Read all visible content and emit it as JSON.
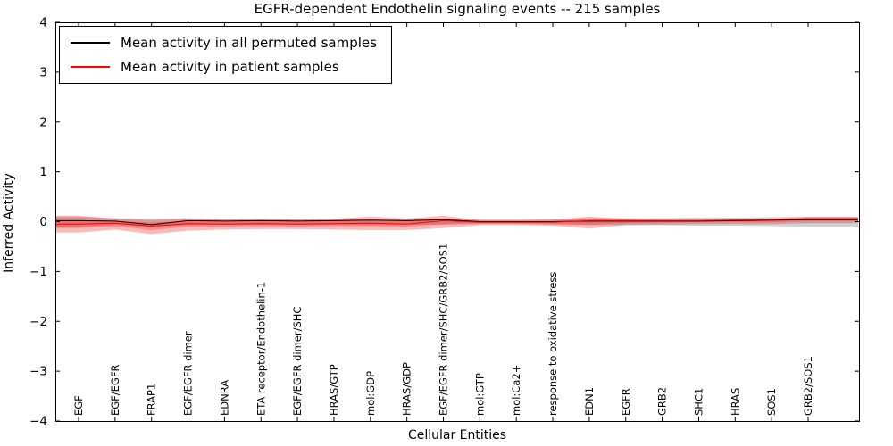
{
  "chart_data": {
    "type": "line",
    "title": "EGFR-dependent Endothelin signaling events -- 215 samples",
    "xlabel": "Cellular Entities",
    "ylabel": "Inferred Activity",
    "ylim": [
      -4,
      4
    ],
    "yticks": [
      -4,
      -3,
      -2,
      -1,
      0,
      1,
      2,
      3,
      4
    ],
    "grid": false,
    "legend_position": "upper left",
    "categories": [
      "EGF",
      "EGF/EGFR",
      "FRAP1",
      "EGF/EGFR dimer",
      "EDNRA",
      "ETA receptor/Endothelin-1",
      "EGF/EGFR dimer/SHC",
      "HRAS/GTP",
      "mol:GDP",
      "HRAS/GDP",
      "EGF/EGFR dimer/SHC/GRB2/SOS1",
      "mol:GTP",
      "mol:Ca2+",
      "response to oxidative stress",
      "EDN1",
      "EGFR",
      "GRB2",
      "SHC1",
      "HRAS",
      "SOS1",
      "GRB2/SOS1"
    ],
    "series": [
      {
        "name": "Mean activity in all permuted samples",
        "color": "#000000",
        "values": [
          0.02,
          0.01,
          -0.06,
          0.02,
          0.01,
          0.02,
          0.01,
          0.02,
          0.03,
          0.02,
          0.04,
          0.0,
          0.0,
          0.0,
          0.01,
          0.01,
          0.01,
          0.01,
          0.02,
          0.03,
          0.04
        ]
      },
      {
        "name": "Mean activity in patient samples",
        "color": "#ff0000",
        "values": [
          -0.05,
          -0.03,
          -0.09,
          -0.04,
          -0.05,
          -0.04,
          -0.05,
          -0.04,
          -0.03,
          -0.05,
          0.02,
          -0.01,
          -0.01,
          -0.01,
          0.02,
          0.02,
          0.02,
          0.02,
          0.03,
          0.04,
          0.06
        ]
      }
    ],
    "bands": [
      {
        "name": "permuted-samples-spread",
        "color": "#999999",
        "opacity": 0.45,
        "upper": [
          0.1,
          0.07,
          0.06,
          0.07,
          0.06,
          0.06,
          0.06,
          0.06,
          0.06,
          0.06,
          0.06,
          0.05,
          0.05,
          0.06,
          0.07,
          0.07,
          0.07,
          0.08,
          0.08,
          0.09,
          0.1
        ],
        "lower": [
          -0.1,
          -0.07,
          -0.1,
          -0.07,
          -0.06,
          -0.06,
          -0.06,
          -0.06,
          -0.06,
          -0.06,
          -0.06,
          -0.05,
          -0.05,
          -0.06,
          -0.07,
          -0.07,
          -0.07,
          -0.08,
          -0.08,
          -0.09,
          -0.1
        ]
      },
      {
        "name": "patient-samples-spread",
        "color": "#ff0000",
        "opacity": 0.28,
        "upper": [
          0.12,
          0.06,
          0.03,
          0.06,
          0.05,
          0.06,
          0.05,
          0.06,
          0.1,
          0.06,
          0.12,
          0.03,
          0.03,
          0.04,
          0.1,
          0.06,
          0.05,
          0.05,
          0.05,
          0.06,
          0.09
        ],
        "lower": [
          -0.22,
          -0.16,
          -0.25,
          -0.18,
          -0.16,
          -0.15,
          -0.15,
          -0.16,
          -0.17,
          -0.17,
          -0.13,
          -0.07,
          -0.07,
          -0.08,
          -0.14,
          -0.07,
          -0.06,
          -0.05,
          -0.05,
          -0.05,
          -0.03
        ]
      },
      {
        "name": "patient-samples-inner-spread",
        "color": "#ff0000",
        "opacity": 0.25,
        "upper": [
          0.03,
          0.01,
          -0.02,
          0.01,
          0.0,
          0.01,
          0.0,
          0.01,
          0.03,
          0.01,
          0.06,
          0.01,
          0.0,
          0.01,
          0.05,
          0.04,
          0.03,
          0.03,
          0.04,
          0.05,
          0.07
        ],
        "lower": [
          -0.13,
          -0.09,
          -0.17,
          -0.1,
          -0.1,
          -0.09,
          -0.1,
          -0.09,
          -0.09,
          -0.1,
          -0.05,
          -0.03,
          -0.03,
          -0.04,
          -0.06,
          -0.03,
          -0.02,
          -0.01,
          -0.01,
          -0.01,
          0.01
        ]
      }
    ]
  }
}
